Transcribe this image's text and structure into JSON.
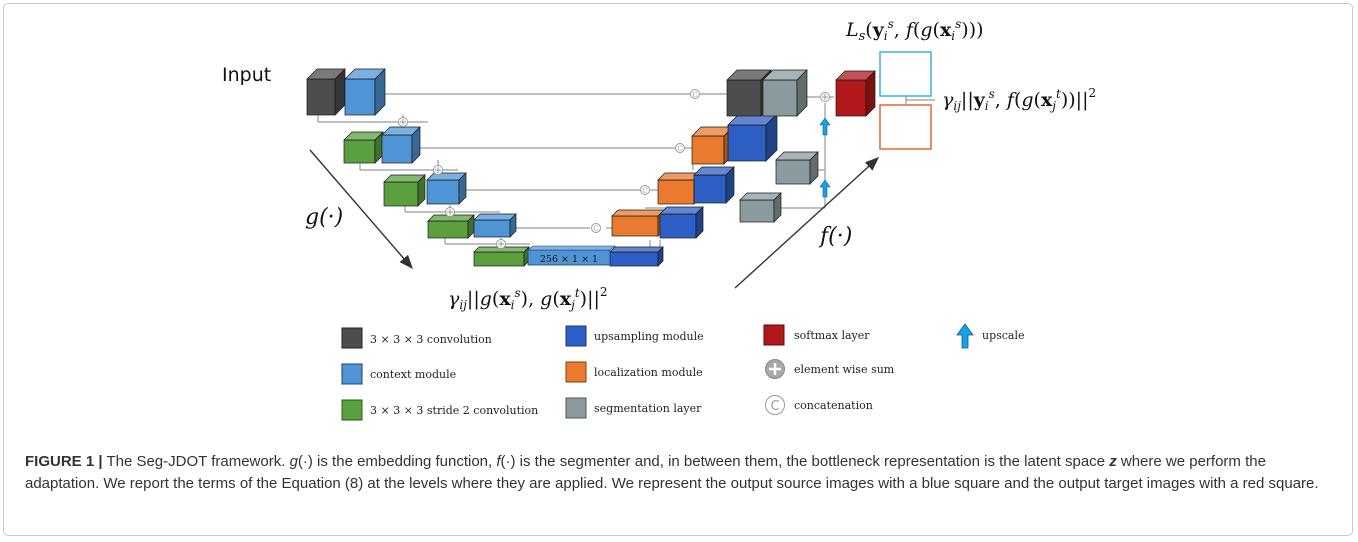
{
  "diagram": {
    "input_label": "Input",
    "g_label": "g(·)",
    "f_label": "f(·)",
    "bottleneck_label": "256 × 1 × 1",
    "loss_source": "L_s(y_i^s, f(g(x_i^s)))",
    "loss_output": "γ_ij ||y_i^s, f(g(x_j^t))||^2",
    "loss_latent": "γ_ij ||g(x_i^s), g(x_j^t)||^2",
    "colors": {
      "conv": "#4d4d4d",
      "context": "#4f95d6",
      "stride_conv": "#5aa03f",
      "upsampling": "#2d5fc4",
      "localization": "#ea7a2e",
      "segmentation": "#8b9a9c",
      "softmax": "#b0181b",
      "upscale": "#1aa0e6",
      "source_square": "#46b7e6",
      "target_square": "#e8703a"
    }
  },
  "legend": {
    "conv": "3 × 3 × 3 convolution",
    "context": "context module",
    "stride_conv": "3 × 3 × 3 stride 2 convolution",
    "upsampling": "upsampling module",
    "localization": "localization module",
    "segmentation": "segmentation layer",
    "softmax": "softmax layer",
    "sum": "element wise sum",
    "concat": "concatenation",
    "upscale": "upscale",
    "concat_symbol": "C"
  },
  "caption": {
    "label": "FIGURE 1 |",
    "s1": " The Seg-JDOT framework. ",
    "g": "g",
    "s2": "(·) is the embedding function, ",
    "f": "f",
    "s3": "(·) is the segmenter and, in between them, the bottleneck representation is the latent space ",
    "z": "z",
    "s4": " where we perform the adaptation. We report the terms of the Equation (8) at the levels where they are applied. We represent the output source images with a blue square and the output target images with a red square."
  }
}
